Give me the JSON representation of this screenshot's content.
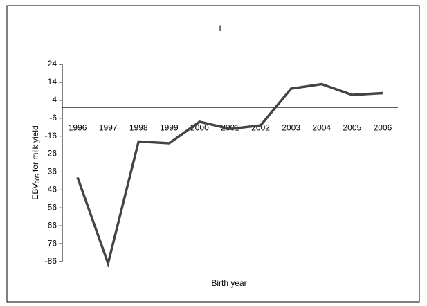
{
  "chart_data": {
    "type": "line",
    "title": "I",
    "xlabel": "Birth year",
    "ylabel": {
      "main": "EBV",
      "sub": "305",
      "rest": " for milk yield"
    },
    "categories": [
      "1996",
      "1997",
      "1998",
      "1999",
      "2000",
      "2001",
      "2002",
      "2003",
      "2004",
      "2005",
      "2006"
    ],
    "values": [
      -39,
      -87,
      -19,
      -20,
      -8,
      -12,
      -10,
      10.5,
      13,
      7,
      8
    ],
    "color": "#444444",
    "ylim": [
      -86,
      24
    ],
    "yticks": [
      24,
      14,
      4,
      -6,
      -16,
      -26,
      -36,
      -46,
      -56,
      -66,
      -76,
      -86
    ],
    "grid": false
  }
}
